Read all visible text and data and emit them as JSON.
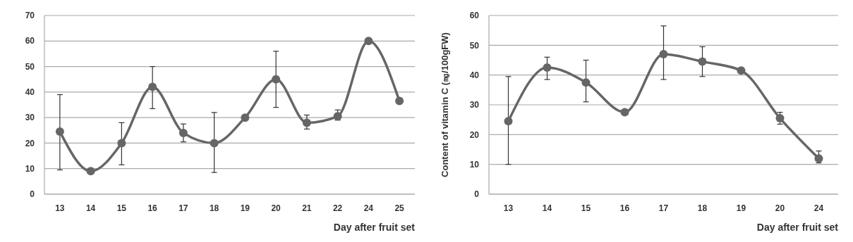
{
  "chart_data": [
    {
      "type": "line",
      "xlabel": "Day after fruit set",
      "categories": [
        "13",
        "14",
        "15",
        "16",
        "17",
        "18",
        "19",
        "20",
        "21",
        "22",
        "24",
        "25"
      ],
      "series": [
        {
          "color": "#666666",
          "values": [
            24.5,
            9,
            20,
            42,
            24,
            20,
            30,
            45,
            28,
            30.5,
            60,
            36.5
          ],
          "errors": [
            [
              9.5,
              39
            ],
            null,
            [
              11.5,
              28
            ],
            [
              33.5,
              50
            ],
            [
              20.5,
              27.5
            ],
            [
              8.5,
              32
            ],
            null,
            [
              34,
              56
            ],
            [
              25.5,
              31
            ],
            [
              29,
              33
            ],
            null,
            null
          ]
        }
      ],
      "ylim": [
        0,
        70
      ],
      "yticks": [
        0,
        10,
        20,
        30,
        40,
        50,
        60,
        70
      ],
      "grid": "y",
      "marker": "circle",
      "line_style": "solid"
    },
    {
      "type": "line",
      "xlabel": "Day after fruit set",
      "ylabel": "Content of vitamin C (㎎/100gFW)",
      "categories": [
        "13",
        "14",
        "15",
        "16",
        "17",
        "18",
        "19",
        "20",
        "24"
      ],
      "series": [
        {
          "color": "#666666",
          "values": [
            24.5,
            42.5,
            37.5,
            27.5,
            47,
            44.5,
            41.5,
            25.5,
            12
          ],
          "errors": [
            [
              10,
              39.5
            ],
            [
              38.5,
              46
            ],
            [
              31,
              45
            ],
            null,
            [
              38.5,
              56.5
            ],
            [
              39.5,
              49.5
            ],
            null,
            [
              23.5,
              27.5
            ],
            [
              10.5,
              14.5
            ]
          ]
        }
      ],
      "ylim": [
        0,
        60
      ],
      "yticks": [
        0,
        10,
        20,
        30,
        40,
        50,
        60
      ],
      "grid": "y",
      "marker": "circle",
      "line_style": "solid"
    }
  ]
}
